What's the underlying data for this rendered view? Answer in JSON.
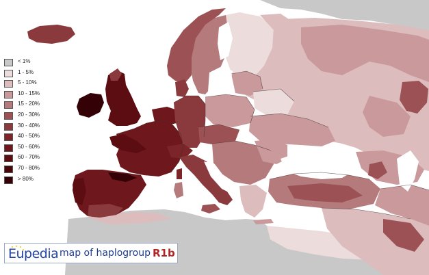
{
  "colors": {
    "sea": "#ffffff",
    "gray": "#c8c8c8",
    "c1": "#ecdcdc",
    "c2": "#ddbcbd",
    "c3": "#c9999b",
    "c4": "#b47a7c",
    "c5": "#9c5255",
    "c6": "#8a3a3d",
    "c7": "#7c2529",
    "c8": "#6e171c",
    "c9": "#5c0d12",
    "c10": "#470609",
    "c11": "#340206",
    "border": "#3a2a2a",
    "title_blue": "#1f3c8f",
    "title_red": "#b22222"
  },
  "legend": [
    {
      "label": "< 1%",
      "color": "#c8c8c8"
    },
    {
      "label": "1 - 5%",
      "color": "#ecdcdc"
    },
    {
      "label": "5 - 10%",
      "color": "#ddbcbd"
    },
    {
      "label": "10 - 15%",
      "color": "#c9999b"
    },
    {
      "label": "15 - 20%",
      "color": "#b47a7c"
    },
    {
      "label": "20 - 30%",
      "color": "#9c5255"
    },
    {
      "label": "30 - 40%",
      "color": "#8a3a3d"
    },
    {
      "label": "40 - 50%",
      "color": "#7c2529"
    },
    {
      "label": "50 - 60%",
      "color": "#6e171c"
    },
    {
      "label": "60 - 70%",
      "color": "#5c0d12"
    },
    {
      "label": "70 - 80%",
      "color": "#470609"
    },
    {
      "label": "> 80%",
      "color": "#340206"
    }
  ],
  "title": {
    "logo": "Eupedia",
    "main": "map of haplogroup",
    "code": "R1b"
  }
}
